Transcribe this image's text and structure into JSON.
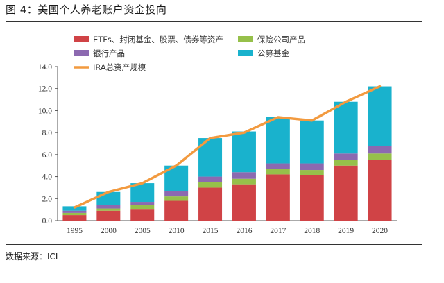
{
  "header": {
    "title": "图 4：美国个人养老账户资金投向"
  },
  "footer": {
    "source": "数据来源：ICI"
  },
  "colors": {
    "etf": "#d04346",
    "insurance": "#96c04a",
    "bank": "#8c69b0",
    "fund": "#19b2cd",
    "ira": "#f29a3f"
  },
  "chart_data": {
    "type": "bar",
    "stacked": true,
    "categories": [
      "1995",
      "2000",
      "2005",
      "2010",
      "2015",
      "2016",
      "2017",
      "2018",
      "2019",
      "2020"
    ],
    "series": [
      {
        "name": "ETFs、封闭基金、股票、债券等资产",
        "color_key": "etf",
        "values": [
          0.5,
          0.9,
          1.0,
          1.8,
          3.0,
          3.3,
          4.2,
          4.1,
          5.0,
          5.5
        ]
      },
      {
        "name": "保险公司产品",
        "color_key": "insurance",
        "values": [
          0.2,
          0.2,
          0.4,
          0.4,
          0.5,
          0.5,
          0.5,
          0.5,
          0.5,
          0.6
        ]
      },
      {
        "name": "银行产品",
        "color_key": "bank",
        "values": [
          0.2,
          0.3,
          0.3,
          0.5,
          0.5,
          0.6,
          0.5,
          0.6,
          0.6,
          0.7
        ]
      },
      {
        "name": "公募基金",
        "color_key": "fund",
        "values": [
          0.4,
          1.2,
          1.7,
          2.3,
          3.5,
          3.7,
          4.2,
          3.9,
          4.7,
          5.4
        ]
      }
    ],
    "line": {
      "name": "IRA总资产规模",
      "color_key": "ira",
      "values": [
        1.2,
        2.6,
        3.4,
        5.0,
        7.5,
        8.0,
        9.4,
        9.1,
        10.8,
        12.2
      ]
    },
    "ylim": [
      0,
      14
    ],
    "yticks": [
      "0.0",
      "2.0",
      "4.0",
      "6.0",
      "8.0",
      "10.0",
      "12.0",
      "14.0"
    ],
    "legend_position": "top-left",
    "grid": false
  }
}
